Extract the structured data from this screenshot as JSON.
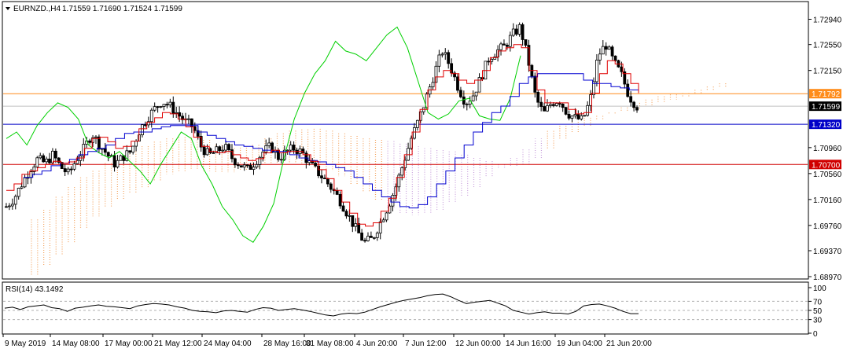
{
  "header": {
    "symbol": "EURNZD.,H4",
    "ohlc": "1.71559 1.71690 1.71524 1.71599"
  },
  "rsi_header": "RSI(14) 43.1492",
  "colors": {
    "bull": "#000000",
    "bear": "#000000",
    "tenkan": "#e00000",
    "kijun": "#0000d0",
    "chikou": "#00d000",
    "kumo_a": "#f4a460",
    "kumo_b": "#c9a0dc",
    "orange_line": "#ff8c1a",
    "blue_line": "#0000c8",
    "red_line": "#d00000"
  },
  "chart_data": [
    {
      "type": "candlestick",
      "title": "EURNZD.,H4",
      "ylim": [
        1.6897,
        1.7314
      ],
      "price_ticks": [
        "1.72940",
        "1.72550",
        "1.72150",
        "1.71792",
        "1.71599",
        "1.71320",
        "1.70960",
        "1.70700",
        "1.70560",
        "1.70160",
        "1.69760",
        "1.69370",
        "1.68970"
      ],
      "time_labels": [
        "9 May 2019",
        "14 May 08:00",
        "17 May 00:00",
        "21 May 12:00",
        "24 May 04:00",
        "28 May 16:00",
        "31 May 08:00",
        "4 Jun 20:00",
        "7 Jun 12:00",
        "12 Jun 00:00",
        "14 Jun 16:00",
        "19 Jun 04:00",
        "21 Jun 20:00"
      ],
      "current_price": 1.71599,
      "horizontal_levels": [
        {
          "price": 1.71792,
          "label": "1.71792",
          "color": "#ff8c1a"
        },
        {
          "price": 1.7132,
          "label": "1.71320",
          "color": "#0000c8"
        },
        {
          "price": 1.707,
          "label": "1.70700",
          "color": "#d00000"
        }
      ],
      "close_path": [
        1.7005,
        1.7018,
        1.704,
        1.7062,
        1.7078,
        1.7072,
        1.7085,
        1.7066,
        1.7055,
        1.7078,
        1.7095,
        1.7118,
        1.71,
        1.7085,
        1.707,
        1.7082,
        1.709,
        1.712,
        1.714,
        1.7155,
        1.7168,
        1.716,
        1.7148,
        1.7136,
        1.7128,
        1.7098,
        1.7084,
        1.709,
        1.7098,
        1.708,
        1.707,
        1.7062,
        1.7075,
        1.709,
        1.7098,
        1.708,
        1.709,
        1.7095,
        1.7088,
        1.707,
        1.7058,
        1.7045,
        1.703,
        1.7012,
        1.699,
        1.6968,
        1.695,
        1.6955,
        1.698,
        1.7005,
        1.7035,
        1.7072,
        1.711,
        1.714,
        1.7175,
        1.7212,
        1.7245,
        1.7222,
        1.719,
        1.7165,
        1.7178,
        1.7205,
        1.7235,
        1.7245,
        1.7252,
        1.727,
        1.7282,
        1.7232,
        1.7172,
        1.7148,
        1.7165,
        1.717,
        1.715,
        1.7142,
        1.7138,
        1.717,
        1.7238,
        1.7255,
        1.7228,
        1.7208,
        1.7175,
        1.716
      ],
      "tenkan": [
        1.703,
        1.704,
        1.7055,
        1.706,
        1.7065,
        1.707,
        1.7075,
        1.7072,
        1.7074,
        1.708,
        1.7095,
        1.711,
        1.7112,
        1.7105,
        1.7095,
        1.7098,
        1.7106,
        1.7125,
        1.7135,
        1.7142,
        1.715,
        1.7148,
        1.714,
        1.7128,
        1.7112,
        1.7098,
        1.709,
        1.7088,
        1.709,
        1.7085,
        1.708,
        1.7076,
        1.7079,
        1.7088,
        1.7092,
        1.7088,
        1.709,
        1.709,
        1.7085,
        1.7075,
        1.7062,
        1.7048,
        1.703,
        1.7012,
        1.6995,
        1.6978,
        1.6975,
        1.698,
        1.6998,
        1.7018,
        1.705,
        1.7085,
        1.712,
        1.7155,
        1.7185,
        1.7205,
        1.7215,
        1.721,
        1.72,
        1.7195,
        1.72,
        1.7215,
        1.7235,
        1.7245,
        1.725,
        1.7255,
        1.725,
        1.7215,
        1.7185,
        1.7165,
        1.7165,
        1.7165,
        1.7155,
        1.7148,
        1.715,
        1.718,
        1.721,
        1.723,
        1.7225,
        1.721,
        1.7195,
        1.718
      ],
      "kijun": [
        1.705,
        1.7055,
        1.706,
        1.7068,
        1.7072,
        1.7078,
        1.7085,
        1.709,
        1.7095,
        1.71,
        1.711,
        1.7118,
        1.712,
        1.712,
        1.7125,
        1.7128,
        1.713,
        1.713,
        1.713,
        1.712,
        1.7115,
        1.711,
        1.7105,
        1.71,
        1.7098,
        1.7095,
        1.7092,
        1.709,
        1.709,
        1.7085,
        1.708,
        1.7076,
        1.7074,
        1.707,
        1.7065,
        1.706,
        1.705,
        1.704,
        1.703,
        1.702,
        1.7012,
        1.7005,
        1.7003,
        1.7008,
        1.702,
        1.704,
        1.706,
        1.708,
        1.71,
        1.712,
        1.7135,
        1.715,
        1.716,
        1.7175,
        1.7195,
        1.7205,
        1.721,
        1.721,
        1.721,
        1.721,
        1.721,
        1.72,
        1.7195,
        1.7195,
        1.719,
        1.7188,
        1.7185,
        1.7182
      ],
      "chikou": [
        1.711,
        1.712,
        1.71,
        1.713,
        1.715,
        1.7165,
        1.7158,
        1.714,
        1.71,
        1.7088,
        1.708,
        1.709,
        1.7075,
        1.706,
        1.704,
        1.707,
        1.7095,
        1.712,
        1.711,
        1.7068,
        1.704,
        1.7005,
        1.6985,
        1.696,
        1.695,
        1.6975,
        1.701,
        1.708,
        1.714,
        1.718,
        1.721,
        1.723,
        1.726,
        1.7245,
        1.724,
        1.723,
        1.725,
        1.727,
        1.7282,
        1.725,
        1.72,
        1.715,
        1.714,
        1.7148,
        1.7168,
        1.7172,
        1.7145,
        1.714,
        1.7138,
        1.7172,
        1.7238
      ],
      "kumo_top": [
        1.6985,
        1.7,
        1.702,
        1.7035,
        1.705,
        1.706,
        1.7072,
        1.708,
        1.709,
        1.7098,
        1.7105,
        1.711,
        1.7112,
        1.7112,
        1.7108,
        1.71,
        1.7095,
        1.7096,
        1.71,
        1.711,
        1.7118,
        1.7122,
        1.7124,
        1.7125,
        1.7122,
        1.7118,
        1.7114,
        1.711,
        1.7108,
        1.7106,
        1.7102,
        1.7098,
        1.7095,
        1.7092,
        1.709,
        1.7085,
        1.708,
        1.7075,
        1.707,
        1.7068,
        1.707,
        1.708,
        1.7095,
        1.711,
        1.712,
        1.713,
        1.714,
        1.715,
        1.7158,
        1.7165,
        1.717,
        1.7175,
        1.7178,
        1.718,
        1.7185,
        1.719,
        1.7195
      ],
      "kumo_bottom": [
        1.69,
        1.6915,
        1.693,
        1.695,
        1.697,
        1.699,
        1.7005,
        1.7015,
        1.7025,
        1.7035,
        1.7045,
        1.7055,
        1.706,
        1.7062,
        1.706,
        1.7058,
        1.7058,
        1.7062,
        1.7065,
        1.707,
        1.7072,
        1.7072,
        1.707,
        1.7066,
        1.706,
        1.7052,
        1.704,
        1.7028,
        1.7015,
        1.7002,
        1.6995,
        1.6992,
        1.6995,
        1.7,
        1.701,
        1.7022,
        1.7035,
        1.705,
        1.7065,
        1.708,
        1.7095,
        1.711,
        1.7122,
        1.713,
        1.7138,
        1.7142,
        1.7145,
        1.7148,
        1.7152,
        1.7155,
        1.716,
        1.7165,
        1.717,
        1.7175,
        1.718,
        1.7185,
        1.719
      ]
    },
    {
      "type": "line",
      "title": "RSI(14) 43.1492",
      "ylim": [
        0,
        100
      ],
      "ticks": [
        "100",
        "70",
        "50",
        "30",
        "0"
      ],
      "levels": [
        70,
        50,
        30
      ],
      "values": [
        55,
        57,
        52,
        58,
        60,
        62,
        56,
        54,
        48,
        55,
        57,
        60,
        62,
        59,
        58,
        56,
        54,
        60,
        63,
        65,
        64,
        62,
        58,
        55,
        50,
        48,
        47,
        45,
        49,
        50,
        48,
        46,
        52,
        56,
        55,
        50,
        52,
        54,
        51,
        48,
        44,
        40,
        38,
        42,
        44,
        43,
        46,
        52,
        58,
        63,
        68,
        72,
        75,
        78,
        82,
        85,
        86,
        80,
        72,
        65,
        68,
        70,
        72,
        66,
        60,
        50,
        46,
        42,
        45,
        47,
        44,
        44,
        42,
        48,
        60,
        63,
        64,
        60,
        55,
        48,
        43,
        43
      ]
    }
  ]
}
